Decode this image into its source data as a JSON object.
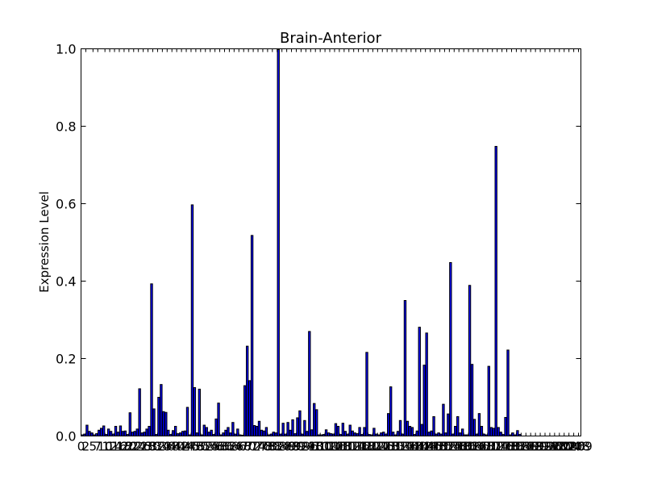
{
  "chart_data": {
    "type": "bar",
    "title": "Brain-Anterior",
    "ylabel": "Expression Level",
    "xlabel": "",
    "ylim": [
      0,
      1.0
    ],
    "yticks": [
      "0.0",
      "0.2",
      "0.4",
      "0.6",
      "0.8",
      "1.0"
    ],
    "xlim": [
      0,
      209
    ],
    "xtick_labels": [
      "0",
      "2",
      "5",
      "7",
      "10",
      "12",
      "14",
      "16",
      "18",
      "20",
      "22",
      "24",
      "26",
      "28",
      "30",
      "32",
      "34",
      "36",
      "38",
      "40",
      "42",
      "44",
      "46",
      "48",
      "50",
      "52",
      "54",
      "56",
      "58",
      "60",
      "62",
      "64",
      "66",
      "68",
      "70",
      "72",
      "74",
      "76",
      "78",
      "80",
      "82",
      "84",
      "86",
      "88",
      "90",
      "92",
      "94",
      "96",
      "98",
      "100",
      "102",
      "104",
      "106",
      "108",
      "110",
      "112",
      "114",
      "116",
      "118",
      "120",
      "122",
      "124",
      "126",
      "128",
      "130",
      "132",
      "134",
      "136",
      "138",
      "140",
      "142",
      "144",
      "146",
      "148",
      "150",
      "152",
      "154",
      "156",
      "158",
      "160",
      "162",
      "164",
      "166",
      "168",
      "170",
      "172",
      "174",
      "176",
      "178",
      "180",
      "182",
      "184",
      "186",
      "188",
      "190",
      "192",
      "194",
      "196",
      "198",
      "200",
      "202",
      "204",
      "206",
      "208",
      "209"
    ],
    "values": [
      0.003,
      0.005,
      0.028,
      0.012,
      0.008,
      0.003,
      0.006,
      0.015,
      0.02,
      0.026,
      0.004,
      0.018,
      0.012,
      0.005,
      0.025,
      0.01,
      0.026,
      0.012,
      0.013,
      0.004,
      0.06,
      0.01,
      0.012,
      0.018,
      0.122,
      0.008,
      0.01,
      0.018,
      0.025,
      0.393,
      0.07,
      0.004,
      0.1,
      0.133,
      0.063,
      0.061,
      0.015,
      0.004,
      0.014,
      0.025,
      0.006,
      0.008,
      0.012,
      0.013,
      0.074,
      0.003,
      0.597,
      0.125,
      0.008,
      0.121,
      0.003,
      0.028,
      0.022,
      0.01,
      0.015,
      0.004,
      0.044,
      0.085,
      0.003,
      0.008,
      0.015,
      0.022,
      0.008,
      0.035,
      0.005,
      0.018,
      0.003,
      0.002,
      0.13,
      0.232,
      0.143,
      0.518,
      0.027,
      0.025,
      0.038,
      0.015,
      0.013,
      0.022,
      0.003,
      0.005,
      0.01,
      0.008,
      0.998,
      0.005,
      0.033,
      0.005,
      0.035,
      0.015,
      0.042,
      0.006,
      0.047,
      0.065,
      0.005,
      0.04,
      0.012,
      0.27,
      0.016,
      0.084,
      0.068,
      0.003,
      0.003,
      0.004,
      0.016,
      0.008,
      0.006,
      0.005,
      0.032,
      0.025,
      0.004,
      0.033,
      0.012,
      0.005,
      0.028,
      0.013,
      0.008,
      0.006,
      0.022,
      0.004,
      0.022,
      0.216,
      0.004,
      0.003,
      0.02,
      0.005,
      0.003,
      0.008,
      0.01,
      0.005,
      0.058,
      0.127,
      0.01,
      0.003,
      0.012,
      0.04,
      0.005,
      0.35,
      0.038,
      0.025,
      0.022,
      0.004,
      0.013,
      0.281,
      0.03,
      0.183,
      0.266,
      0.01,
      0.013,
      0.05,
      0.005,
      0.008,
      0.005,
      0.082,
      0.008,
      0.057,
      0.448,
      0.005,
      0.025,
      0.05,
      0.008,
      0.018,
      0.003,
      0.003,
      0.389,
      0.185,
      0.043,
      0.005,
      0.058,
      0.025,
      0.005,
      0.003,
      0.18,
      0.022,
      0.02,
      0.748,
      0.022,
      0.01,
      0.004,
      0.048,
      0.222,
      0.003,
      0.008,
      0.003,
      0.014,
      0.004
    ],
    "colors": {
      "bar_fill": "#0000ff",
      "bar_edge": "#000000",
      "axes": "#000000"
    },
    "grid": false,
    "legend": "none"
  }
}
